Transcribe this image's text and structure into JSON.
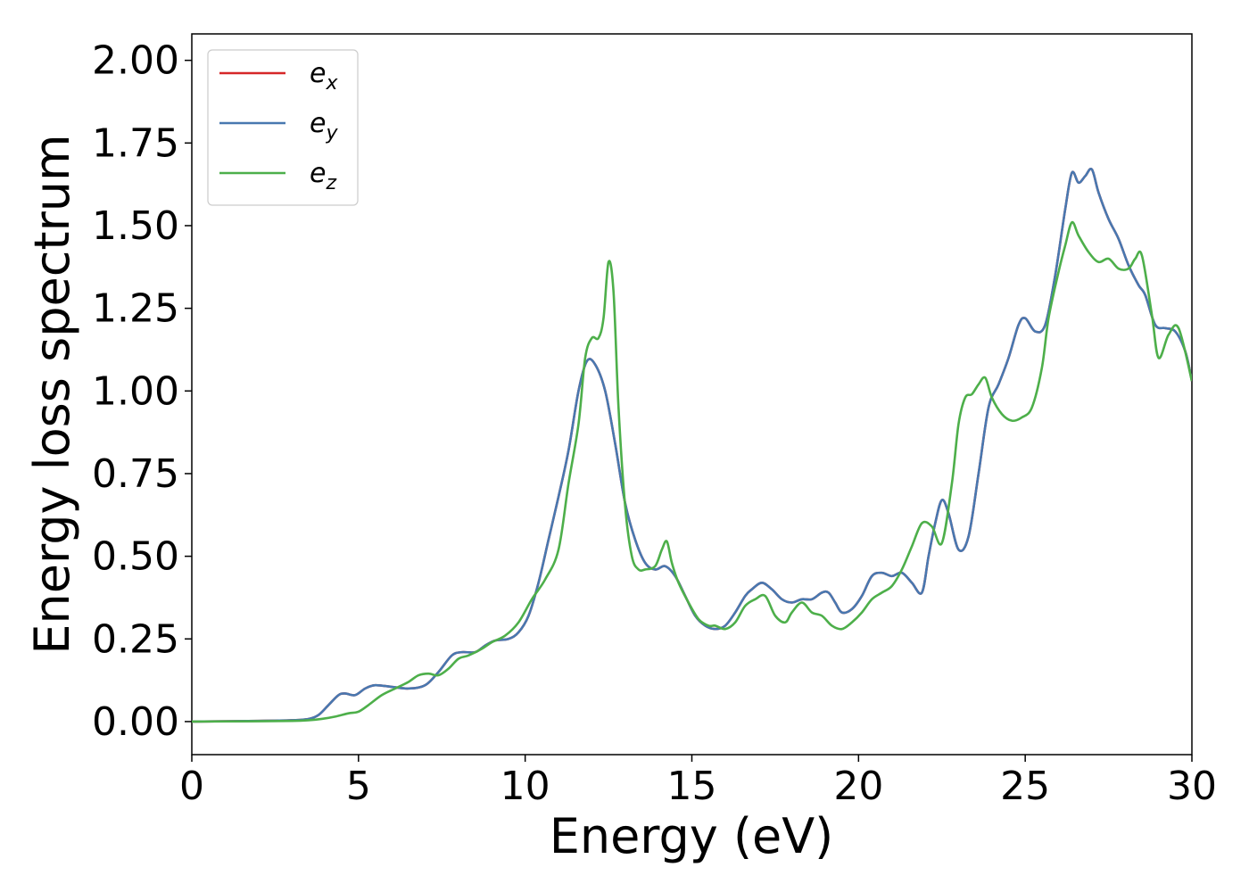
{
  "chart_data": {
    "type": "line",
    "title": "",
    "xlabel": "Energy (eV)",
    "ylabel": "Energy loss spectrum",
    "xlim": [
      0,
      30
    ],
    "ylim": [
      -0.1,
      2.08
    ],
    "xticks": [
      "0",
      "5",
      "10",
      "15",
      "20",
      "25",
      "30"
    ],
    "xtick_values": [
      0,
      5,
      10,
      15,
      20,
      25,
      30
    ],
    "yticks": [
      "0.00",
      "0.25",
      "0.50",
      "0.75",
      "1.00",
      "1.25",
      "1.50",
      "1.75",
      "2.00"
    ],
    "ytick_values": [
      0,
      0.25,
      0.5,
      0.75,
      1.0,
      1.25,
      1.5,
      1.75,
      2.0
    ],
    "grid": false,
    "legend_position": "top-left",
    "series": [
      {
        "name": "e",
        "subscript": "x",
        "color": "#d62728",
        "x": [
          0,
          2,
          3,
          3.5,
          3.8,
          4.1,
          4.4,
          4.6,
          4.9,
          5.2,
          5.5,
          6.0,
          6.5,
          7.0,
          7.4,
          7.8,
          8.1,
          8.5,
          8.8,
          9.1,
          9.5,
          9.8,
          10.1,
          10.4,
          10.7,
          11.0,
          11.3,
          11.6,
          11.85,
          12.1,
          12.4,
          12.7,
          13.0,
          13.3,
          13.6,
          13.9,
          14.2,
          14.5,
          14.8,
          15.1,
          15.4,
          15.7,
          16.0,
          16.3,
          16.6,
          16.8,
          17.1,
          17.4,
          17.7,
          18.0,
          18.3,
          18.6,
          18.9,
          19.1,
          19.3,
          19.5,
          19.8,
          20.1,
          20.4,
          20.7,
          21.0,
          21.3,
          21.6,
          21.9,
          22.1,
          22.3,
          22.5,
          22.7,
          23.0,
          23.3,
          23.6,
          23.9,
          24.2,
          24.5,
          24.8,
          25.0,
          25.3,
          25.6,
          25.9,
          26.2,
          26.4,
          26.6,
          26.8,
          27.0,
          27.2,
          27.5,
          27.8,
          28.1,
          28.4,
          28.6,
          28.9,
          29.2,
          29.5,
          29.8,
          30.0
        ],
        "y": [
          0,
          0.002,
          0.004,
          0.008,
          0.02,
          0.05,
          0.08,
          0.085,
          0.08,
          0.1,
          0.11,
          0.105,
          0.1,
          0.11,
          0.15,
          0.2,
          0.21,
          0.21,
          0.23,
          0.245,
          0.25,
          0.27,
          0.32,
          0.42,
          0.55,
          0.68,
          0.82,
          1.0,
          1.09,
          1.08,
          1.0,
          0.84,
          0.66,
          0.55,
          0.48,
          0.46,
          0.47,
          0.44,
          0.38,
          0.32,
          0.29,
          0.28,
          0.29,
          0.33,
          0.38,
          0.4,
          0.42,
          0.4,
          0.37,
          0.36,
          0.37,
          0.37,
          0.39,
          0.39,
          0.36,
          0.33,
          0.34,
          0.38,
          0.44,
          0.45,
          0.44,
          0.45,
          0.42,
          0.39,
          0.5,
          0.6,
          0.67,
          0.63,
          0.52,
          0.56,
          0.75,
          0.95,
          1.02,
          1.1,
          1.2,
          1.22,
          1.18,
          1.2,
          1.35,
          1.55,
          1.66,
          1.63,
          1.65,
          1.67,
          1.6,
          1.52,
          1.46,
          1.38,
          1.32,
          1.29,
          1.2,
          1.19,
          1.18,
          1.12,
          1.03
        ]
      },
      {
        "name": "e",
        "subscript": "y",
        "color": "#4878b0",
        "x": [
          0,
          2,
          3,
          3.5,
          3.8,
          4.1,
          4.4,
          4.6,
          4.9,
          5.2,
          5.5,
          6.0,
          6.5,
          7.0,
          7.4,
          7.8,
          8.1,
          8.5,
          8.8,
          9.1,
          9.5,
          9.8,
          10.1,
          10.4,
          10.7,
          11.0,
          11.3,
          11.6,
          11.85,
          12.1,
          12.4,
          12.7,
          13.0,
          13.3,
          13.6,
          13.9,
          14.2,
          14.5,
          14.8,
          15.1,
          15.4,
          15.7,
          16.0,
          16.3,
          16.6,
          16.8,
          17.1,
          17.4,
          17.7,
          18.0,
          18.3,
          18.6,
          18.9,
          19.1,
          19.3,
          19.5,
          19.8,
          20.1,
          20.4,
          20.7,
          21.0,
          21.3,
          21.6,
          21.9,
          22.1,
          22.3,
          22.5,
          22.7,
          23.0,
          23.3,
          23.6,
          23.9,
          24.2,
          24.5,
          24.8,
          25.0,
          25.3,
          25.6,
          25.9,
          26.2,
          26.4,
          26.6,
          26.8,
          27.0,
          27.2,
          27.5,
          27.8,
          28.1,
          28.4,
          28.6,
          28.9,
          29.2,
          29.5,
          29.8,
          30.0
        ],
        "y": [
          0,
          0.002,
          0.004,
          0.008,
          0.02,
          0.05,
          0.08,
          0.085,
          0.08,
          0.1,
          0.11,
          0.105,
          0.1,
          0.11,
          0.15,
          0.2,
          0.21,
          0.21,
          0.23,
          0.245,
          0.25,
          0.27,
          0.32,
          0.42,
          0.55,
          0.68,
          0.82,
          1.0,
          1.09,
          1.08,
          1.0,
          0.84,
          0.66,
          0.55,
          0.48,
          0.46,
          0.47,
          0.44,
          0.38,
          0.32,
          0.29,
          0.28,
          0.29,
          0.33,
          0.38,
          0.4,
          0.42,
          0.4,
          0.37,
          0.36,
          0.37,
          0.37,
          0.39,
          0.39,
          0.36,
          0.33,
          0.34,
          0.38,
          0.44,
          0.45,
          0.44,
          0.45,
          0.42,
          0.39,
          0.5,
          0.6,
          0.67,
          0.63,
          0.52,
          0.56,
          0.75,
          0.95,
          1.02,
          1.1,
          1.2,
          1.22,
          1.18,
          1.2,
          1.35,
          1.55,
          1.66,
          1.63,
          1.65,
          1.67,
          1.6,
          1.52,
          1.46,
          1.38,
          1.32,
          1.29,
          1.2,
          1.19,
          1.18,
          1.12,
          1.03
        ]
      },
      {
        "name": "e",
        "subscript": "z",
        "color": "#4daf4a",
        "x": [
          0,
          2,
          3,
          3.5,
          3.9,
          4.3,
          4.7,
          5.0,
          5.3,
          5.7,
          6.1,
          6.5,
          6.8,
          7.1,
          7.4,
          7.7,
          8.0,
          8.3,
          8.7,
          9.0,
          9.4,
          9.8,
          10.2,
          10.6,
          11.0,
          11.3,
          11.6,
          11.8,
          12.0,
          12.2,
          12.35,
          12.5,
          12.65,
          12.8,
          13.0,
          13.2,
          13.4,
          13.6,
          13.9,
          14.1,
          14.25,
          14.4,
          14.6,
          14.9,
          15.2,
          15.5,
          15.7,
          16.0,
          16.3,
          16.6,
          16.9,
          17.2,
          17.5,
          17.8,
          18.0,
          18.3,
          18.6,
          18.9,
          19.2,
          19.5,
          19.8,
          20.1,
          20.4,
          20.7,
          21.0,
          21.3,
          21.6,
          21.9,
          22.2,
          22.5,
          22.8,
          23.0,
          23.2,
          23.4,
          23.6,
          23.8,
          24.0,
          24.3,
          24.6,
          24.9,
          25.2,
          25.5,
          25.7,
          26.0,
          26.2,
          26.4,
          26.6,
          26.9,
          27.2,
          27.5,
          27.8,
          28.1,
          28.3,
          28.5,
          28.8,
          29.0,
          29.3,
          29.6,
          30.0
        ],
        "y": [
          0,
          0.001,
          0.002,
          0.004,
          0.008,
          0.015,
          0.025,
          0.03,
          0.05,
          0.08,
          0.1,
          0.12,
          0.14,
          0.145,
          0.14,
          0.16,
          0.19,
          0.2,
          0.22,
          0.24,
          0.26,
          0.3,
          0.37,
          0.43,
          0.52,
          0.72,
          0.9,
          1.1,
          1.16,
          1.16,
          1.22,
          1.39,
          1.3,
          0.95,
          0.65,
          0.5,
          0.46,
          0.46,
          0.47,
          0.52,
          0.545,
          0.48,
          0.42,
          0.36,
          0.31,
          0.29,
          0.29,
          0.28,
          0.3,
          0.35,
          0.37,
          0.38,
          0.32,
          0.3,
          0.33,
          0.36,
          0.33,
          0.32,
          0.29,
          0.28,
          0.3,
          0.33,
          0.37,
          0.39,
          0.41,
          0.46,
          0.53,
          0.6,
          0.59,
          0.54,
          0.72,
          0.9,
          0.98,
          0.99,
          1.02,
          1.04,
          0.98,
          0.93,
          0.91,
          0.92,
          0.95,
          1.07,
          1.22,
          1.36,
          1.44,
          1.51,
          1.47,
          1.42,
          1.39,
          1.4,
          1.37,
          1.37,
          1.4,
          1.41,
          1.23,
          1.1,
          1.17,
          1.19,
          1.03
        ]
      }
    ]
  }
}
